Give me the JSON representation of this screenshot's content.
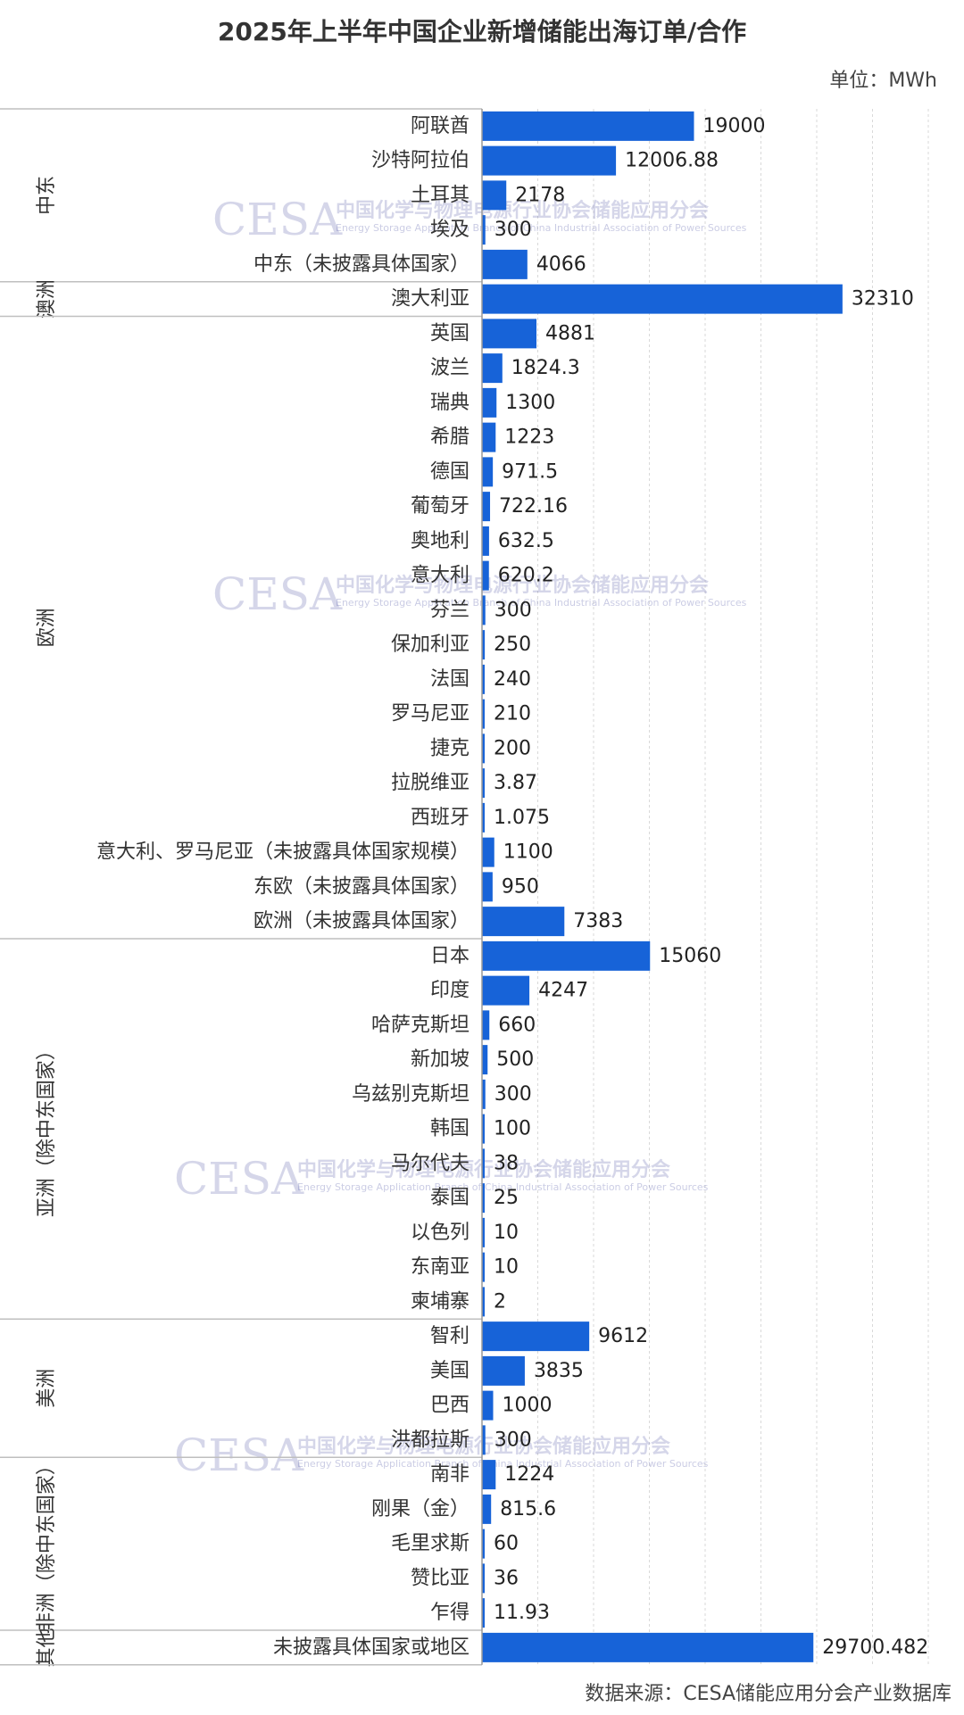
{
  "title": "2025年上半年中国企业新增储能出海订单/合作",
  "unit": "单位：MWh",
  "source": "数据来源：CESA储能应用分会产业数据库",
  "bar_color": "#1763d8",
  "watermark": {
    "logo": "CESA",
    "cn": "中国化学与物理电源行业协会储能应用分会",
    "en": "Energy Storage Application Branch of China Industrial Association of Power Sources"
  },
  "chart_data": {
    "type": "bar",
    "orientation": "horizontal",
    "xlim": [
      0,
      40000
    ],
    "grid": true,
    "groups": [
      {
        "region": "中东",
        "categories": [
          "阿联酋",
          "沙特阿拉伯",
          "土耳其",
          "埃及",
          "中东（未披露具体国家）"
        ],
        "values": [
          19000,
          12006.88,
          2178,
          300,
          4066
        ],
        "labels": [
          "19000",
          "12006.88",
          "2178",
          "300",
          "4066"
        ]
      },
      {
        "region": "澳洲",
        "categories": [
          "澳大利亚"
        ],
        "values": [
          32310
        ],
        "labels": [
          "32310"
        ]
      },
      {
        "region": "欧洲",
        "categories": [
          "英国",
          "波兰",
          "瑞典",
          "希腊",
          "德国",
          "葡萄牙",
          "奥地利",
          "意大利",
          "芬兰",
          "保加利亚",
          "法国",
          "罗马尼亚",
          "捷克",
          "拉脱维亚",
          "西班牙",
          "意大利、罗马尼亚（未披露具体国家规模）",
          "东欧（未披露具体国家）",
          "欧洲（未披露具体国家）"
        ],
        "values": [
          4881,
          1824.3,
          1300,
          1223,
          971.5,
          722.16,
          632.5,
          620.2,
          300,
          250,
          240,
          210,
          200,
          3.87,
          1.075,
          1100,
          950,
          7383
        ],
        "labels": [
          "4881",
          "1824.3",
          "1300",
          "1223",
          "971.5",
          "722.16",
          "632.5",
          "620.2",
          "300",
          "250",
          "240",
          "210",
          "200",
          "3.87",
          "1.075",
          "1100",
          "950",
          "7383"
        ]
      },
      {
        "region": "亚洲（除中东国家）",
        "categories": [
          "日本",
          "印度",
          "哈萨克斯坦",
          "新加坡",
          "乌兹别克斯坦",
          "韩国",
          "马尔代夫",
          "泰国",
          "以色列",
          "东南亚",
          "柬埔寨"
        ],
        "values": [
          15060,
          4247,
          660,
          500,
          300,
          100,
          38,
          25,
          10,
          10,
          2
        ],
        "labels": [
          "15060",
          "4247",
          "660",
          "500",
          "300",
          "100",
          "38",
          "25",
          "10",
          "10",
          "2"
        ]
      },
      {
        "region": "美洲",
        "categories": [
          "智利",
          "美国",
          "巴西",
          "洪都拉斯"
        ],
        "values": [
          9612,
          3835,
          1000,
          300
        ],
        "labels": [
          "9612",
          "3835",
          "1000",
          "300"
        ]
      },
      {
        "region": "非洲（除中东国家）",
        "categories": [
          "南非",
          "刚果（金）",
          "毛里求斯",
          "赞比亚",
          "乍得"
        ],
        "values": [
          1224,
          815.6,
          60,
          36,
          11.93
        ],
        "labels": [
          "1224",
          "815.6",
          "60",
          "36",
          "11.93"
        ]
      },
      {
        "region": "其他",
        "categories": [
          "未披露具体国家或地区"
        ],
        "values": [
          29700.482
        ],
        "labels": [
          "29700.482"
        ]
      }
    ]
  }
}
